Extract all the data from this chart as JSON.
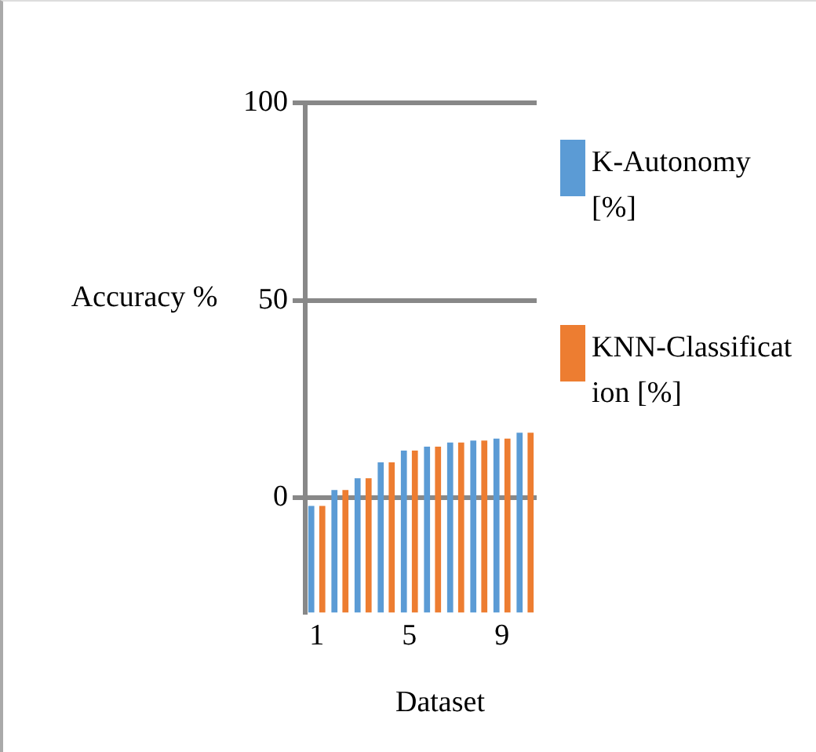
{
  "chart_data": {
    "type": "bar",
    "xlabel": "Dataset",
    "ylabel": "Accuracy %",
    "categories": [
      "1",
      null,
      null,
      null,
      "5",
      null,
      null,
      null,
      "9",
      null
    ],
    "series": [
      {
        "name": "K-Autonomy [%]",
        "color": "#5b9bd5",
        "base": [
          -29,
          -29,
          -29,
          -29,
          -29,
          -29,
          -29,
          -29,
          -29,
          -29
        ],
        "values": [
          27,
          31,
          34,
          38,
          41,
          42,
          43,
          43.5,
          44,
          45.5
        ]
      },
      {
        "name": "KNN-Classification [%]",
        "color": "#ed7d31",
        "base": [
          -29,
          -29,
          -29,
          -29,
          -29,
          -29,
          -29,
          -29,
          -29,
          -29
        ],
        "values": [
          27,
          31,
          34,
          38,
          41,
          42,
          43,
          43.5,
          44,
          45.5
        ]
      }
    ],
    "ylim": [
      -29,
      100
    ],
    "yticks": [
      0,
      50,
      100
    ],
    "grid": "y",
    "legend": "right"
  }
}
